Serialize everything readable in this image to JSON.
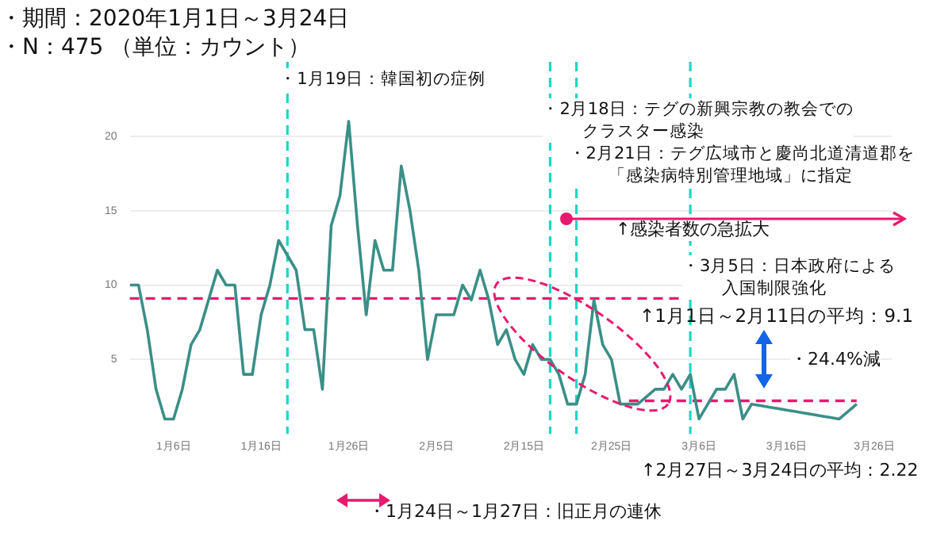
{
  "chart_data": {
    "type": "line",
    "title": "・期間：2020年1月1日～3月24日",
    "subtitle": "・N：475 （単位：カウント）",
    "x": [
      "--01-01",
      "--01-02",
      "--01-03",
      "--01-04",
      "--01-05",
      "--01-06",
      "--01-07",
      "--01-08",
      "--01-09",
      "--01-10",
      "--01-11",
      "--01-12",
      "--01-13",
      "--01-14",
      "--01-15",
      "--01-16",
      "--01-17",
      "--01-18",
      "--01-19",
      "--01-20",
      "--01-21",
      "--01-22",
      "--01-23",
      "--01-24",
      "--01-25",
      "--01-26",
      "--01-27",
      "--01-28",
      "--01-29",
      "--01-30",
      "--01-31",
      "--02-01",
      "--02-02",
      "--02-03",
      "--02-04",
      "--02-05",
      "--02-06",
      "--02-07",
      "--02-08",
      "--02-09",
      "--02-10",
      "--02-11",
      "--02-12",
      "--02-13",
      "--02-14",
      "--02-15",
      "--02-16",
      "--02-17",
      "--02-18",
      "--02-19",
      "--02-20",
      "--02-21",
      "--02-22",
      "--02-23",
      "--02-24",
      "--02-25",
      "--02-26",
      "--02-27",
      "--02-28",
      "--02-29",
      "--03-01",
      "--03-02",
      "--03-03",
      "--03-04",
      "--03-05",
      "--03-06",
      "--03-07",
      "--03-08",
      "--03-09",
      "--03-10",
      "--03-11",
      "--03-12",
      "--03-13",
      "--03-14",
      "--03-15",
      "--03-16",
      "--03-17",
      "--03-18",
      "--03-19",
      "--03-20",
      "--03-21",
      "--03-22",
      "--03-23",
      "--03-24"
    ],
    "series": [
      {
        "color": "#3a8f87",
        "values": [
          10,
          10,
          7,
          3,
          1,
          1,
          3,
          6,
          7,
          9,
          11,
          10,
          10,
          4,
          4,
          8,
          10,
          13,
          12,
          11,
          7,
          7,
          3,
          14,
          16,
          21,
          14,
          8,
          13,
          11,
          11,
          18,
          15,
          11,
          5,
          8,
          8,
          8,
          10,
          9,
          11,
          9,
          6,
          7,
          5,
          4,
          6,
          5,
          5,
          4,
          2,
          2,
          4,
          9,
          6,
          5,
          2,
          2,
          2,
          2.5,
          3,
          3,
          4,
          3,
          4,
          1,
          2,
          3,
          3,
          4,
          1,
          2,
          1.9,
          1.8,
          1.7,
          1.6,
          1.5,
          1.4,
          1.3,
          1.2,
          1.1,
          1,
          1.5,
          2
        ]
      },
      {
        "type": "line",
        "color": "#e8196e",
        "line_style": "dashed",
        "x": [
          "--02-27",
          "--03-24"
        ],
        "values": [
          2.22,
          2.22
        ]
      }
    ],
    "xlim": [
      "--01-01",
      "--03-28"
    ],
    "xticks": [
      {
        "value": "--01-06",
        "label": "1月6日"
      },
      {
        "value": "--01-16",
        "label": "1月16日"
      },
      {
        "value": "--01-26",
        "label": "1月26日"
      },
      {
        "value": "--02-05",
        "label": "2月5日"
      },
      {
        "value": "--02-15",
        "label": "2月15日"
      },
      {
        "value": "--02-25",
        "label": "2月25日"
      },
      {
        "value": "--03-06",
        "label": "3月6日"
      },
      {
        "value": "--03-16",
        "label": "3月16日"
      },
      {
        "value": "--03-26",
        "label": "3月26日"
      }
    ],
    "ylim": [
      0,
      25
    ],
    "yticks": [
      5,
      10,
      15,
      20
    ],
    "grid": "y",
    "legend": false,
    "marker": "none",
    "ref_lines": [
      {
        "axis": "x",
        "value": "--01-19",
        "color": "#1ed6c8",
        "line_style": "dashed"
      },
      {
        "axis": "x",
        "value": "--02-18",
        "color": "#1ed6c8",
        "line_style": "dashed"
      },
      {
        "axis": "x",
        "value": "--02-21",
        "color": "#1ed6c8",
        "line_style": "dashed"
      },
      {
        "axis": "x",
        "value": "--03-05",
        "color": "#1ed6c8",
        "line_style": "dashed"
      },
      {
        "axis": "y",
        "value": 9.1,
        "label": "↑1月1日～2月11日の平均：9.1",
        "color": "#e8196e",
        "line_style": "dashed"
      }
    ],
    "annotations": [
      {
        "text": "・1月19日：韓国初の症例",
        "x": "--01-19",
        "y": 24.6
      },
      {
        "text": "・2月18日：テグの新興宗教の教会でのクラスター感染",
        "x": "--02-18",
        "y": 22.5
      },
      {
        "text": "・2月21日：テグ広域市と慶尚北道清道郡を「感染病特別管理地域」に指定",
        "x": "--02-21",
        "y": 19.6
      },
      "↑感染者数の急拡大",
      {
        "text": "・3月5日：日本政府による入国制限強化",
        "x": "--03-05",
        "y": 12
      },
      "・24.4%減",
      "↑2月27日～3月24日の平均：2.22",
      "・1月24日～1月27日：旧正月の連休"
    ]
  }
}
